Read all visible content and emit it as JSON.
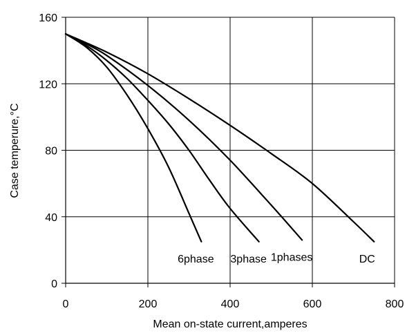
{
  "chart_data": {
    "type": "line",
    "xlabel": "Mean on-state current,amperes",
    "ylabel": "Case temperure,°C",
    "xlim": [
      0,
      800
    ],
    "ylim": [
      0,
      160
    ],
    "xticks": [
      0,
      200,
      400,
      600,
      800
    ],
    "yticks": [
      0,
      40,
      80,
      120,
      160
    ],
    "grid": true,
    "series": [
      {
        "name": "6phase",
        "points": [
          [
            0,
            150
          ],
          [
            50,
            142
          ],
          [
            100,
            130
          ],
          [
            150,
            113
          ],
          [
            200,
            93
          ],
          [
            250,
            70
          ],
          [
            300,
            42
          ],
          [
            330,
            25
          ]
        ]
      },
      {
        "name": "3phase",
        "points": [
          [
            0,
            150
          ],
          [
            50,
            143
          ],
          [
            100,
            134
          ],
          [
            150,
            123
          ],
          [
            200,
            110
          ],
          [
            250,
            96
          ],
          [
            300,
            80
          ],
          [
            350,
            62
          ],
          [
            400,
            45
          ],
          [
            470,
            25
          ]
        ]
      },
      {
        "name": "1phases",
        "points": [
          [
            0,
            150
          ],
          [
            50,
            144
          ],
          [
            100,
            137
          ],
          [
            200,
            119
          ],
          [
            300,
            98
          ],
          [
            400,
            74
          ],
          [
            500,
            47
          ],
          [
            575,
            26
          ]
        ]
      },
      {
        "name": "DC",
        "points": [
          [
            0,
            150
          ],
          [
            100,
            139
          ],
          [
            200,
            126
          ],
          [
            300,
            111
          ],
          [
            400,
            95
          ],
          [
            500,
            78
          ],
          [
            600,
            60
          ],
          [
            700,
            37
          ],
          [
            750,
            25
          ]
        ]
      }
    ]
  }
}
